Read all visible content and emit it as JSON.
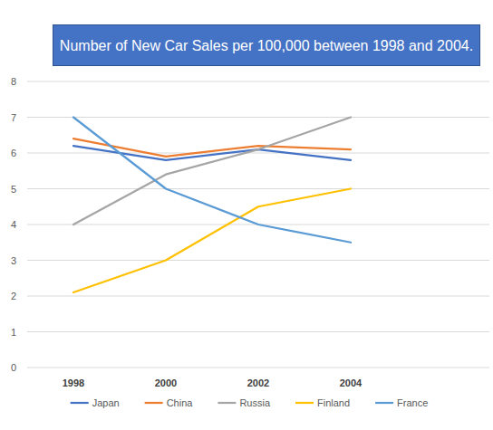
{
  "chart_data": {
    "type": "line",
    "title": "Number of New Car Sales per 100,000 between 1998 and 2004.",
    "categories": [
      "1998",
      "2000",
      "2002",
      "2004"
    ],
    "series": [
      {
        "name": "Japan",
        "color": "#4472c4",
        "values": [
          6.2,
          5.8,
          6.1,
          5.8
        ]
      },
      {
        "name": "China",
        "color": "#ed7d31",
        "values": [
          6.4,
          5.9,
          6.2,
          6.1
        ]
      },
      {
        "name": "Russia",
        "color": "#a5a5a5",
        "values": [
          4.0,
          5.4,
          6.1,
          7.0
        ]
      },
      {
        "name": "Finland",
        "color": "#ffc000",
        "values": [
          2.1,
          3.0,
          4.5,
          5.0
        ]
      },
      {
        "name": "France",
        "color": "#5b9bd5",
        "values": [
          7.0,
          5.0,
          4.0,
          3.5
        ]
      }
    ],
    "ylim": [
      0,
      8
    ],
    "yticks": [
      0,
      1,
      2,
      3,
      4,
      5,
      6,
      7,
      8
    ],
    "grid": true,
    "legend": "bottom"
  }
}
